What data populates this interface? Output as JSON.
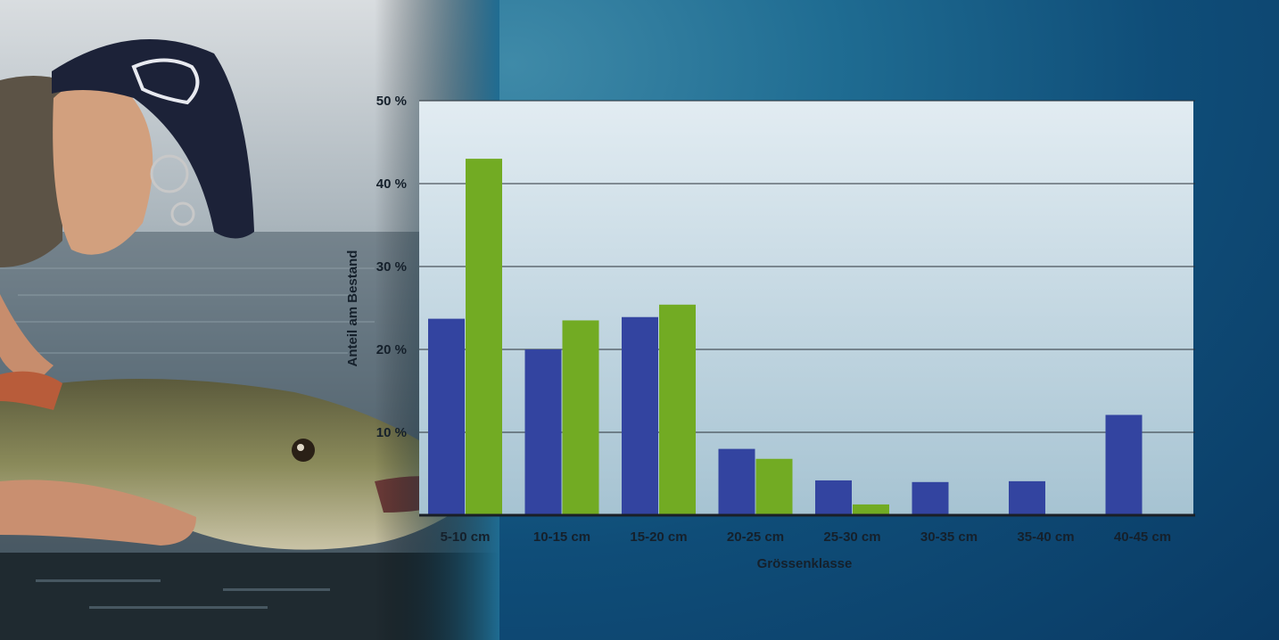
{
  "chart_data": {
    "type": "bar",
    "categories": [
      "5-10 cm",
      "10-15 cm",
      "15-20 cm",
      "20-25 cm",
      "25-30 cm",
      "30-35 cm",
      "35-40 cm",
      "40-45 cm"
    ],
    "series": [
      {
        "color": "#3344a0",
        "values": [
          23.7,
          20.0,
          23.9,
          8.0,
          4.2,
          4.0,
          4.1,
          12.1
        ]
      },
      {
        "color": "#72ab23",
        "values": [
          43.0,
          23.5,
          25.4,
          6.8,
          1.3,
          0,
          0,
          0
        ]
      }
    ],
    "ylim": [
      0,
      50
    ],
    "yticks": [
      {
        "value": 10,
        "label": "10 %"
      },
      {
        "value": 20,
        "label": "20 %"
      },
      {
        "value": 30,
        "label": "30 %"
      },
      {
        "value": 40,
        "label": "40 %"
      },
      {
        "value": 50,
        "label": "50 %"
      }
    ],
    "xlabel": "Grössenklasse",
    "ylabel": "Anteil am Bestand",
    "grid": true
  },
  "photo": {
    "icon": "angler-with-pike-photo"
  }
}
